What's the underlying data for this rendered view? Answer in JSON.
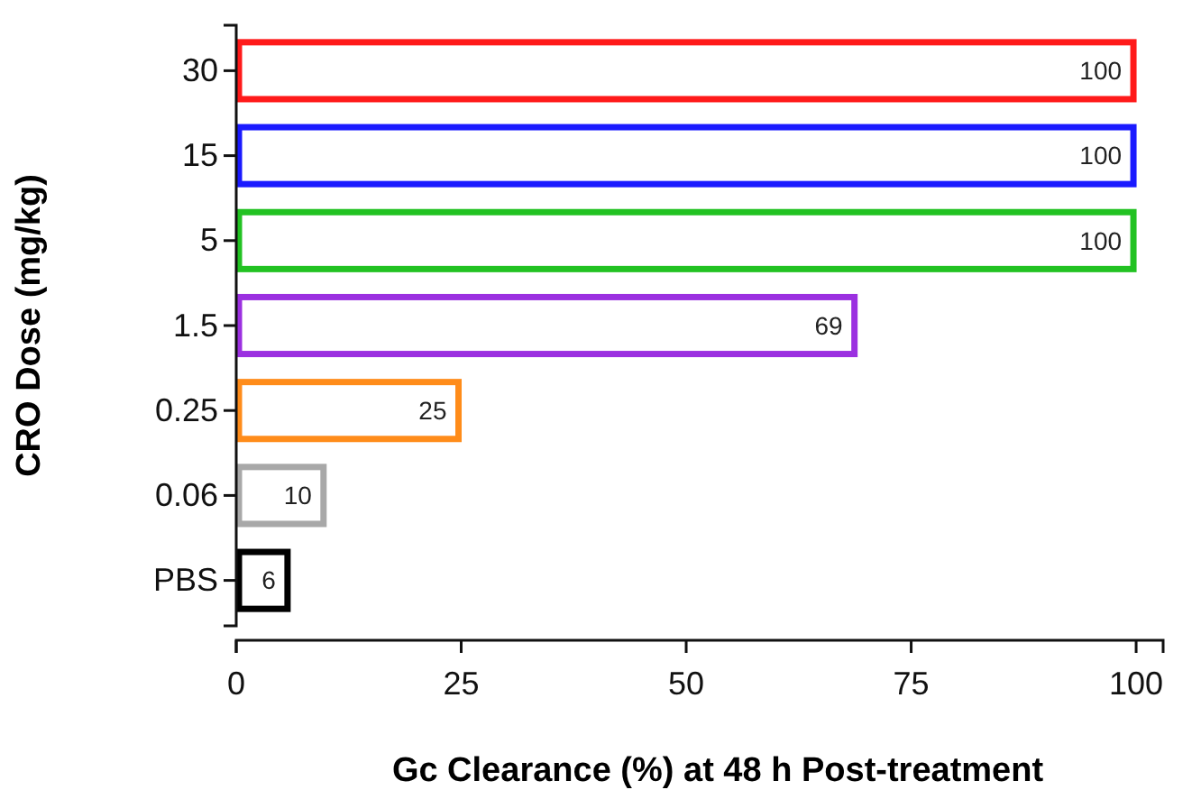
{
  "chart_data": {
    "type": "bar",
    "orientation": "horizontal",
    "xlabel": "Gc Clearance (%) at 48 h Post-treatment",
    "ylabel": "CRO Dose (mg/kg)",
    "categories": [
      "30",
      "15",
      "5",
      "1.5",
      "0.25",
      "0.06",
      "PBS"
    ],
    "values": [
      100,
      100,
      100,
      69,
      25,
      10,
      6
    ],
    "colors": [
      "#ff1a1a",
      "#1a1aff",
      "#22c222",
      "#9b30e0",
      "#ff8c1a",
      "#a8a8a8",
      "#000000"
    ],
    "xlim": [
      0,
      103
    ],
    "xticks": [
      0,
      25,
      50,
      75,
      100
    ],
    "data_labels": true,
    "grid": false
  }
}
